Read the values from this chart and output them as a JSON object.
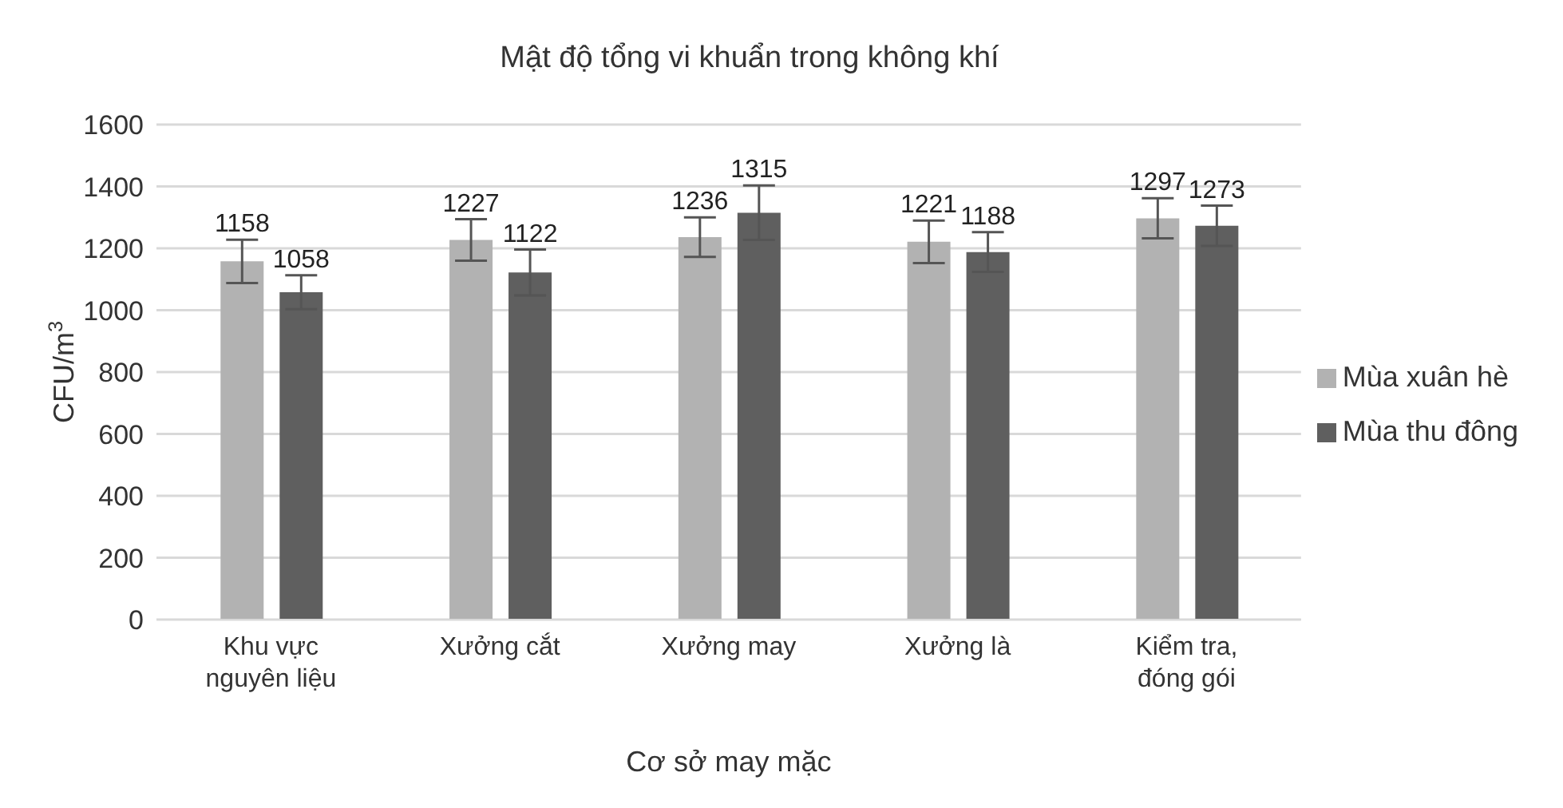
{
  "chart_data": {
    "type": "bar",
    "title": "Mật độ tổng vi khuẩn trong không khí",
    "xlabel": "Cơ sở may mặc",
    "ylabel": "CFU/m$^{3}$",
    "categories": [
      "Khu vực nguyên liệu",
      "Xưởng cắt",
      "Xưởng may",
      "Xưởng là",
      "Kiểm tra, đóng gói"
    ],
    "series": [
      {
        "name": "Mùa xuân hè",
        "color": "#b2b2b2",
        "values": [
          1158,
          1227,
          1236,
          1221,
          1297
        ],
        "errors": [
          70,
          67,
          64,
          69,
          65
        ]
      },
      {
        "name": "Mùa thu đông",
        "color": "#5f5f5f",
        "values": [
          1058,
          1122,
          1315,
          1188,
          1273
        ],
        "errors": [
          55,
          74,
          88,
          64,
          65
        ]
      }
    ],
    "ylim": [
      0,
      1600
    ],
    "yticks": [
      0,
      200,
      400,
      600,
      800,
      1000,
      1200,
      1400,
      1600
    ],
    "grid": "y",
    "legend": "right",
    "data_labels": true
  }
}
